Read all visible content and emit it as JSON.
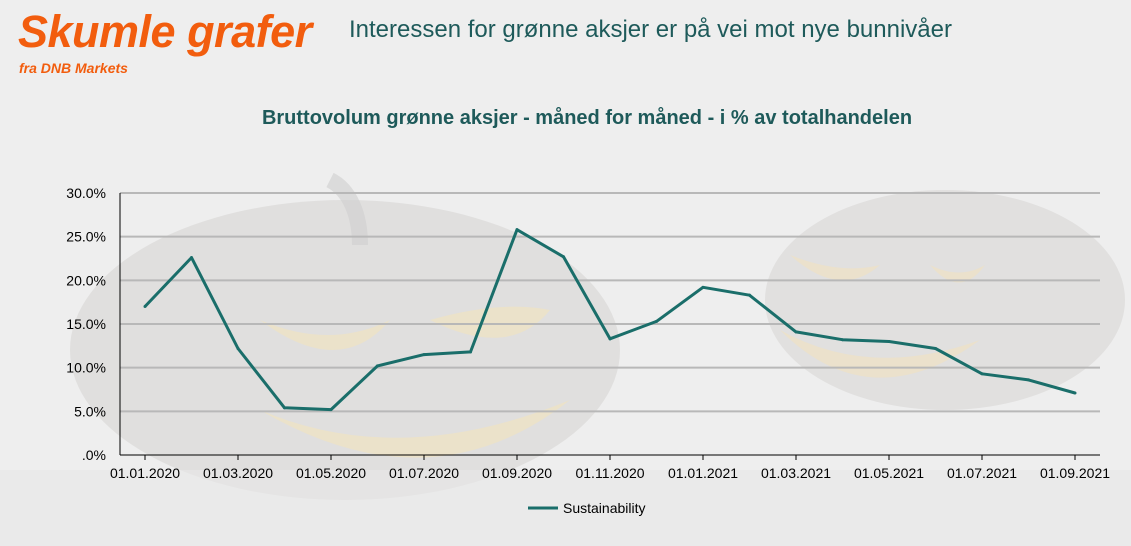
{
  "header": {
    "brand": "Skumle grafer",
    "brand_sub": "fra DNB Markets",
    "headline": "Interessen for grønne aksjer er på vei mot nye bunnivåer"
  },
  "colors": {
    "brand": "#f25d0e",
    "heading": "#1e5a5a",
    "line": "#1a6e6a",
    "grid": "#b8b8b8"
  },
  "chart_data": {
    "type": "line",
    "title": "Bruttovolum grønne aksjer - måned for måned - i % av totalhandelen",
    "xlabel": "",
    "ylabel": "",
    "ylim": [
      0,
      30
    ],
    "yticks": [
      0,
      5,
      10,
      15,
      20,
      25,
      30
    ],
    "ytick_labels": [
      ".0%",
      "5.0%",
      "10.0%",
      "15.0%",
      "20.0%",
      "25.0%",
      "30.0%"
    ],
    "xtick_labels": [
      "01.01.2020",
      "01.03.2020",
      "01.05.2020",
      "01.07.2020",
      "01.09.2020",
      "01.11.2020",
      "01.01.2021",
      "01.03.2021",
      "01.05.2021",
      "01.07.2021",
      "01.09.2021"
    ],
    "grid": true,
    "legend_position": "bottom",
    "series": [
      {
        "name": "Sustainability",
        "x": [
          "01.01.2020",
          "01.02.2020",
          "01.03.2020",
          "01.04.2020",
          "01.05.2020",
          "01.06.2020",
          "01.07.2020",
          "01.08.2020",
          "01.09.2020",
          "01.10.2020",
          "01.11.2020",
          "01.12.2020",
          "01.01.2021",
          "01.02.2021",
          "01.03.2021",
          "01.04.2021",
          "01.05.2021",
          "01.06.2021",
          "01.07.2021",
          "01.08.2021",
          "01.09.2021"
        ],
        "values": [
          17.0,
          22.6,
          12.2,
          5.4,
          5.2,
          10.2,
          11.5,
          11.8,
          25.8,
          22.7,
          13.3,
          15.3,
          19.2,
          18.3,
          14.1,
          13.2,
          13.0,
          12.2,
          9.3,
          8.6,
          7.1
        ]
      }
    ]
  }
}
